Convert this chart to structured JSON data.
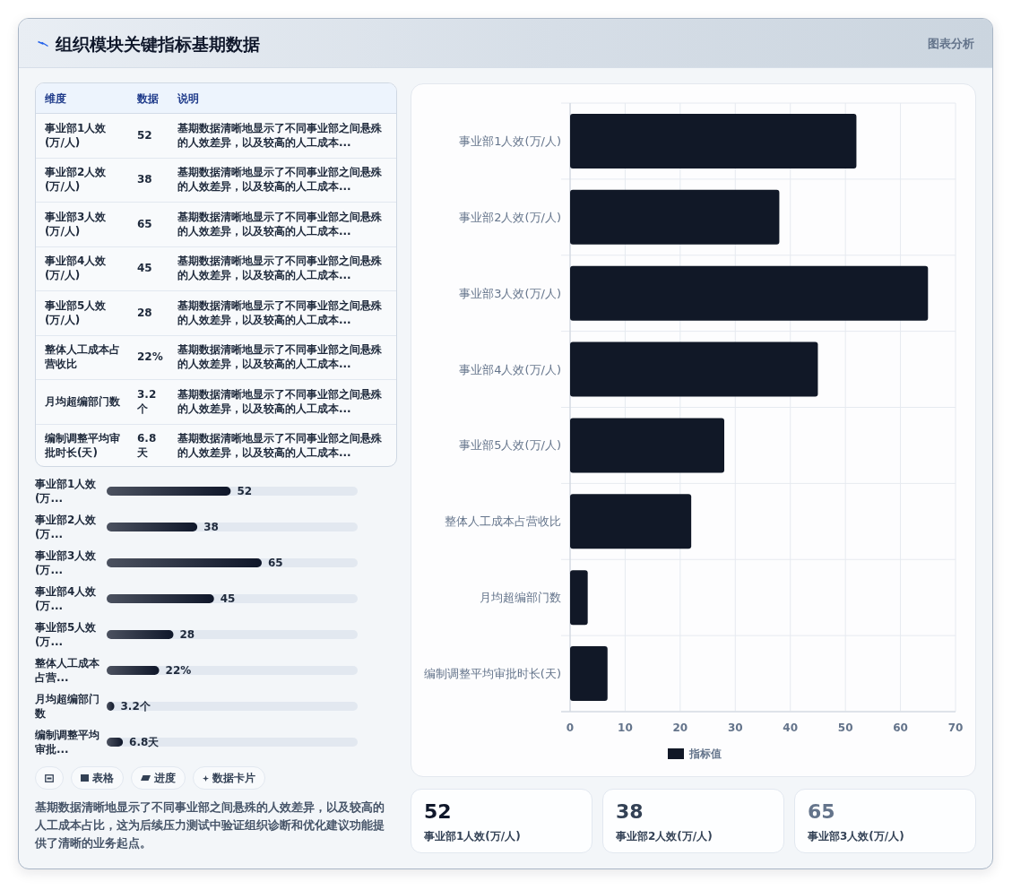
{
  "chart_data": [
    {
      "type": "other",
      "title": "组织模块关键指标基期数据",
      "annotations": [
        "图表分析"
      ]
    },
    {
      "type": "other",
      "categories": [
        "事业部1人效(万/人)",
        "事业部2人效(万/人)",
        "事业部3人效(万/人)",
        "事业部4人效(万/人)",
        "事业部5人效(万/人)",
        "整体人工成本占营收比",
        "月均超编部门数",
        "编制调整平均审批时长(天)"
      ],
      "value_labels": [
        "52",
        "38",
        "65",
        "45",
        "28",
        "22%",
        "3.2个",
        "6.8天"
      ],
      "annotations": [
        "维度",
        "数据",
        "说明",
        "基期数据清晰地显示了不同事业部之间悬殊的人效差异，以及较高的人工成本...",
        "基期数据清晰地显示了不同事业部之间悬殊的人效差异，以及较高的人工成本...",
        "基期数据清晰地显示了不同事业部之间悬殊的人效差异，以及较高的人工成本...",
        "基期数据清晰地显示了不同事业部之间悬殊的人效差异，以及较高的人工成本...",
        "基期数据清晰地显示了不同事业部之间悬殊的人效差异，以及较高的人工成本...",
        "基期数据清晰地显示了不同事业部之间悬殊的人效差异，以及较高的人工成本...",
        "基期数据清晰地显示了不同事业部之间悬殊的人效差异，以及较高的人工成本...",
        "基期数据清晰地显示了不同事业部之间悬殊的人效差异，以及较高的人工成本..."
      ]
    },
    {
      "type": "bar",
      "orientation": "horizontal",
      "categories": [
        "事业部1人效(万...",
        "事业部2人效(万...",
        "事业部3人效(万...",
        "事业部4人效(万...",
        "事业部5人效(万...",
        "整体人工成本占营...",
        "月均超编部门数",
        "编制调整平均审批..."
      ],
      "values": [
        52,
        38,
        65,
        45,
        28,
        22,
        3.2,
        6.8
      ],
      "value_labels": [
        "52",
        "38",
        "65",
        "45",
        "28",
        "22%",
        "3.2个",
        "6.8天"
      ],
      "color": "#0f172a",
      "tick_labels": "y"
    },
    {
      "type": "other",
      "categories": [
        null,
        "表格",
        "进度",
        "数据卡片"
      ],
      "annotations": [
        "基期数据清晰地显示了不同事业部之间悬殊的人效差异，以及较高的人工成本占比，这为后续压力测试中验证组织诊断和优化建议功能提供了清晰的业务起点。"
      ]
    },
    {
      "type": "bar",
      "orientation": "horizontal",
      "categories": [
        "事业部1人效(万/人)",
        "事业部2人效(万/人)",
        "事业部3人效(万/人)",
        "事业部4人效(万/人)",
        "事业部5人效(万/人)",
        "整体人工成本占营收比",
        "月均超编部门数",
        "编制调整平均审批时长(天)"
      ],
      "series": [
        {
          "name": "指标值",
          "color": "#111827",
          "values": [
            52,
            38,
            65,
            45,
            28,
            22,
            3.2,
            6.8
          ]
        }
      ],
      "xlim": [
        0,
        70
      ],
      "xticks": [
        0,
        10,
        20,
        30,
        40,
        50,
        60,
        70
      ],
      "grid": true,
      "legend": "bottom"
    },
    {
      "type": "other",
      "categories": [
        "事业部1人效(万/人)",
        "事业部2人效(万/人)",
        "事业部3人效(万/人)"
      ],
      "values": [
        52,
        38,
        65
      ],
      "data_labels": true
    }
  ]
}
